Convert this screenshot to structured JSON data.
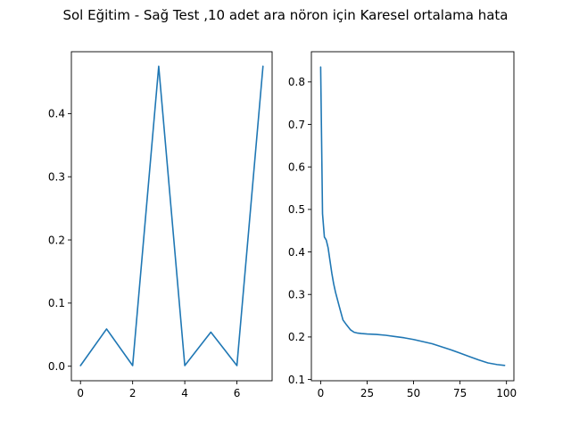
{
  "figure": {
    "suptitle": "Sol Eğitim - Sağ Test ,10 adet ara nöron için Karesel ortalama hata"
  },
  "colors": {
    "line": "#1f77b4",
    "axes": "#000000",
    "background": "#ffffff"
  },
  "chart_data": [
    {
      "type": "line",
      "title": "",
      "xlabel": "",
      "ylabel": "",
      "grid": false,
      "xlim": [
        -0.35,
        7.35
      ],
      "ylim": [
        -0.023,
        0.498
      ],
      "xticks": [
        0,
        2,
        4,
        6
      ],
      "yticks": [
        0.0,
        0.1,
        0.2,
        0.3,
        0.4
      ],
      "xtick_labels": [
        "0",
        "2",
        "4",
        "6"
      ],
      "ytick_labels": [
        "0.0",
        "0.1",
        "0.2",
        "0.3",
        "0.4"
      ],
      "series": [
        {
          "x": [
            0,
            1,
            2,
            3,
            4,
            5,
            6,
            7
          ],
          "y": [
            0.001,
            0.059,
            0.001,
            0.475,
            0.001,
            0.054,
            0.001,
            0.475
          ]
        }
      ]
    },
    {
      "type": "line",
      "title": "",
      "xlabel": "",
      "ylabel": "",
      "grid": false,
      "xlim": [
        -5,
        104
      ],
      "ylim": [
        0.097,
        0.871
      ],
      "xticks": [
        0,
        25,
        50,
        75,
        100
      ],
      "yticks": [
        0.1,
        0.2,
        0.3,
        0.4,
        0.5,
        0.6,
        0.7,
        0.8
      ],
      "xtick_labels": [
        "0",
        "25",
        "50",
        "75",
        "100"
      ],
      "ytick_labels": [
        "0.1",
        "0.2",
        "0.3",
        "0.4",
        "0.5",
        "0.6",
        "0.7",
        "0.8"
      ],
      "series": [
        {
          "x": [
            0,
            1,
            2,
            3,
            4,
            5,
            6,
            7,
            8,
            10,
            12,
            14,
            16,
            18,
            20,
            22,
            25,
            30,
            35,
            40,
            45,
            50,
            55,
            60,
            65,
            70,
            75,
            80,
            85,
            90,
            95,
            99
          ],
          "y": [
            0.835,
            0.49,
            0.435,
            0.428,
            0.41,
            0.38,
            0.35,
            0.325,
            0.305,
            0.272,
            0.24,
            0.228,
            0.217,
            0.211,
            0.209,
            0.208,
            0.207,
            0.206,
            0.204,
            0.201,
            0.198,
            0.194,
            0.189,
            0.184,
            0.177,
            0.17,
            0.162,
            0.154,
            0.146,
            0.139,
            0.135,
            0.133
          ]
        }
      ]
    }
  ]
}
